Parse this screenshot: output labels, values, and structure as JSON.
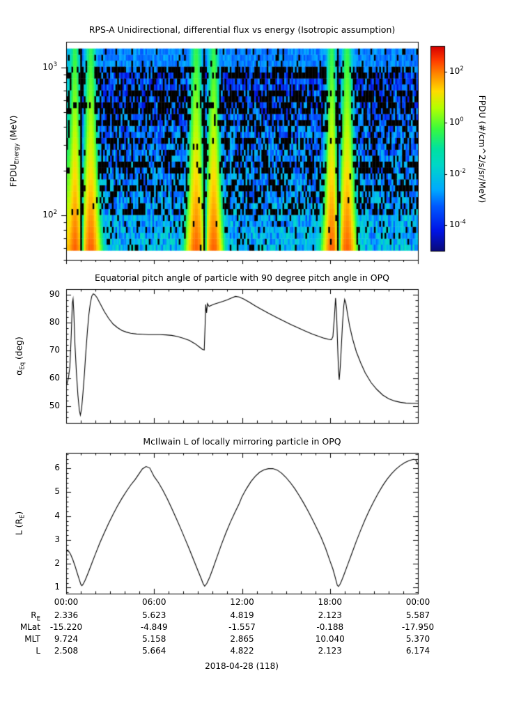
{
  "colors": {
    "background": "#ffffff",
    "frame": "#000000",
    "line": "#000000",
    "heatmap_gap": "#000000"
  },
  "chart_data": [
    {
      "type": "heatmap",
      "title": "RPS-A Unidirectional, differential flux vs energy (Isotropic assumption)",
      "ylabel": "FPDU_Energy (MeV)",
      "ylabel_parts": {
        "main": "FPDU",
        "sub": "Energy",
        "rest": " (MeV)"
      },
      "yscale": "log",
      "ylim": [
        50,
        1500
      ],
      "energy_range": [
        58,
        1350
      ],
      "ytick_values": [
        1000,
        100
      ],
      "ytick_exponents": [
        "3",
        "2"
      ],
      "x_range_hours": [
        0,
        24
      ],
      "colorbar": {
        "label": "FPDU (#/cm^2/s/sr/MeV)",
        "scale": "log",
        "lim": [
          1e-05,
          1000.0
        ],
        "tick_values": [
          100,
          1,
          0.01,
          0.0001
        ],
        "tick_exponents": [
          "2",
          "0",
          "-2",
          "-4"
        ]
      },
      "model": {
        "seed": 42,
        "belt": {
          "L_center": 1.9,
          "L_sigma": 0.85,
          "logA_at_60MeV": 2.2,
          "logA_slope_per_decade": -1.9,
          "narrowing": 1.6,
          "low_L_cutoff": 1.35,
          "low_L_width": 0.18
        },
        "background": {
          "log_at_60MeV": -2.3,
          "slope_per_decade": -1.1,
          "noise": 0.9,
          "top_band_min_MeV": 950,
          "top_band_log": -2.9
        },
        "dropout": {
          "low_E": 0.1,
          "mid_E": 0.32,
          "stripe_extra": 0.3,
          "top_E": 0.35,
          "bright_suppress": 0.08
        },
        "gap_times_hours": [
          1.05,
          9.4,
          18.55
        ],
        "gap_halfwidth_hours": 0.09
      }
    },
    {
      "type": "line",
      "title": "Equatorial pitch angle of particle with 90 degree pitch angle in OPQ",
      "ylabel": "α_Eq (deg)",
      "ylabel_parts": {
        "main": "α",
        "sub": "Eq",
        "rest": " (deg)"
      },
      "ylim": [
        44,
        92
      ],
      "yticks": [
        50,
        60,
        70,
        80,
        90
      ],
      "minor_step": 2,
      "points": [
        [
          0,
          57
        ],
        [
          0.15,
          60
        ],
        [
          0.25,
          64
        ],
        [
          0.35,
          76
        ],
        [
          0.42,
          87
        ],
        [
          0.47,
          88.5
        ],
        [
          0.52,
          84
        ],
        [
          0.6,
          72
        ],
        [
          0.7,
          62
        ],
        [
          0.8,
          54
        ],
        [
          0.9,
          48.5
        ],
        [
          0.97,
          46.8
        ],
        [
          1.05,
          49
        ],
        [
          1.15,
          55
        ],
        [
          1.25,
          62
        ],
        [
          1.35,
          70
        ],
        [
          1.45,
          77
        ],
        [
          1.55,
          83
        ],
        [
          1.65,
          87
        ],
        [
          1.75,
          89.5
        ],
        [
          1.85,
          90.3
        ],
        [
          1.95,
          90
        ],
        [
          2.1,
          89
        ],
        [
          2.3,
          87
        ],
        [
          2.6,
          84
        ],
        [
          2.9,
          81.5
        ],
        [
          3.2,
          79.5
        ],
        [
          3.5,
          78.2
        ],
        [
          3.8,
          77.2
        ],
        [
          4.1,
          76.6
        ],
        [
          4.4,
          76.2
        ],
        [
          4.8,
          75.9
        ],
        [
          5.2,
          75.8
        ],
        [
          5.6,
          75.7
        ],
        [
          6,
          75.7
        ],
        [
          6.4,
          75.7
        ],
        [
          6.8,
          75.6
        ],
        [
          7.2,
          75.4
        ],
        [
          7.6,
          75
        ],
        [
          8,
          74.4
        ],
        [
          8.4,
          73.6
        ],
        [
          8.8,
          72.4
        ],
        [
          9.1,
          71.2
        ],
        [
          9.3,
          70.4
        ],
        [
          9.42,
          70.2
        ],
        [
          9.48,
          79
        ],
        [
          9.52,
          86.5
        ],
        [
          9.58,
          83.5
        ],
        [
          9.64,
          86.8
        ],
        [
          9.75,
          85.8
        ],
        [
          9.9,
          86.2
        ],
        [
          10.1,
          86.6
        ],
        [
          10.4,
          87.1
        ],
        [
          10.7,
          87.6
        ],
        [
          11,
          88.2
        ],
        [
          11.3,
          88.9
        ],
        [
          11.55,
          89.4
        ],
        [
          11.8,
          89.2
        ],
        [
          12.1,
          88.5
        ],
        [
          12.5,
          87.3
        ],
        [
          12.9,
          86
        ],
        [
          13.3,
          84.8
        ],
        [
          13.8,
          83.4
        ],
        [
          14.3,
          82
        ],
        [
          14.8,
          80.7
        ],
        [
          15.3,
          79.4
        ],
        [
          15.8,
          78.2
        ],
        [
          16.3,
          77
        ],
        [
          16.8,
          75.9
        ],
        [
          17.2,
          75.1
        ],
        [
          17.6,
          74.4
        ],
        [
          17.9,
          74
        ],
        [
          18.1,
          73.9
        ],
        [
          18.2,
          75
        ],
        [
          18.3,
          82
        ],
        [
          18.38,
          88.8
        ],
        [
          18.45,
          83
        ],
        [
          18.52,
          72
        ],
        [
          18.58,
          63
        ],
        [
          18.63,
          59.5
        ],
        [
          18.7,
          64
        ],
        [
          18.78,
          72
        ],
        [
          18.86,
          80
        ],
        [
          18.94,
          86
        ],
        [
          19,
          88.3
        ],
        [
          19.08,
          87
        ],
        [
          19.2,
          83
        ],
        [
          19.35,
          78.5
        ],
        [
          19.55,
          74
        ],
        [
          19.8,
          69.5
        ],
        [
          20.1,
          65.5
        ],
        [
          20.4,
          62
        ],
        [
          20.8,
          58.5
        ],
        [
          21.2,
          56
        ],
        [
          21.6,
          54
        ],
        [
          22,
          52.7
        ],
        [
          22.4,
          51.9
        ],
        [
          22.8,
          51.4
        ],
        [
          23.2,
          51.1
        ],
        [
          23.6,
          51
        ],
        [
          24,
          51
        ]
      ]
    },
    {
      "type": "line",
      "title": "McIlwain L of locally mirroring particle in OPQ",
      "ylabel": "L (R_E)",
      "ylabel_parts": {
        "main": "L (R",
        "sub": "E",
        "rest": ")"
      },
      "ylim": [
        0.75,
        6.65
      ],
      "yticks": [
        1,
        2,
        3,
        4,
        5,
        6
      ],
      "minor_step": 0.2,
      "points": [
        [
          0,
          2.5
        ],
        [
          0.1,
          2.56
        ],
        [
          0.2,
          2.5
        ],
        [
          0.3,
          2.4
        ],
        [
          0.45,
          2.18
        ],
        [
          0.6,
          1.92
        ],
        [
          0.75,
          1.62
        ],
        [
          0.9,
          1.33
        ],
        [
          1,
          1.14
        ],
        [
          1.07,
          1.08
        ],
        [
          1.15,
          1.14
        ],
        [
          1.3,
          1.32
        ],
        [
          1.5,
          1.62
        ],
        [
          1.75,
          2.02
        ],
        [
          2,
          2.42
        ],
        [
          2.3,
          2.88
        ],
        [
          2.6,
          3.3
        ],
        [
          2.9,
          3.7
        ],
        [
          3.2,
          4.07
        ],
        [
          3.5,
          4.42
        ],
        [
          3.8,
          4.74
        ],
        [
          4.1,
          5.03
        ],
        [
          4.4,
          5.3
        ],
        [
          4.7,
          5.53
        ],
        [
          5,
          5.8
        ],
        [
          5.2,
          5.98
        ],
        [
          5.45,
          6.08
        ],
        [
          5.7,
          6.02
        ],
        [
          6,
          5.66
        ],
        [
          6.3,
          5.4
        ],
        [
          6.6,
          5.08
        ],
        [
          6.9,
          4.72
        ],
        [
          7.2,
          4.33
        ],
        [
          7.5,
          3.92
        ],
        [
          7.8,
          3.5
        ],
        [
          8.1,
          3.06
        ],
        [
          8.4,
          2.62
        ],
        [
          8.7,
          2.16
        ],
        [
          9,
          1.7
        ],
        [
          9.2,
          1.4
        ],
        [
          9.35,
          1.16
        ],
        [
          9.45,
          1.06
        ],
        [
          9.6,
          1.18
        ],
        [
          9.8,
          1.45
        ],
        [
          10,
          1.78
        ],
        [
          10.3,
          2.3
        ],
        [
          10.6,
          2.82
        ],
        [
          10.9,
          3.3
        ],
        [
          11.2,
          3.74
        ],
        [
          11.5,
          4.14
        ],
        [
          11.8,
          4.52
        ],
        [
          12,
          4.82
        ],
        [
          12.3,
          5.15
        ],
        [
          12.6,
          5.44
        ],
        [
          12.9,
          5.67
        ],
        [
          13.2,
          5.84
        ],
        [
          13.5,
          5.94
        ],
        [
          13.8,
          5.99
        ],
        [
          14.1,
          5.99
        ],
        [
          14.4,
          5.93
        ],
        [
          14.7,
          5.8
        ],
        [
          15,
          5.62
        ],
        [
          15.3,
          5.4
        ],
        [
          15.6,
          5.15
        ],
        [
          15.9,
          4.86
        ],
        [
          16.2,
          4.55
        ],
        [
          16.5,
          4.22
        ],
        [
          16.8,
          3.86
        ],
        [
          17.1,
          3.49
        ],
        [
          17.4,
          3.1
        ],
        [
          17.7,
          2.65
        ],
        [
          18,
          2.12
        ],
        [
          18.2,
          1.78
        ],
        [
          18.35,
          1.45
        ],
        [
          18.5,
          1.1
        ],
        [
          18.58,
          1.05
        ],
        [
          18.7,
          1.16
        ],
        [
          18.85,
          1.38
        ],
        [
          19,
          1.62
        ],
        [
          19.2,
          1.95
        ],
        [
          19.5,
          2.45
        ],
        [
          19.8,
          2.95
        ],
        [
          20.1,
          3.42
        ],
        [
          20.4,
          3.86
        ],
        [
          20.7,
          4.26
        ],
        [
          21,
          4.63
        ],
        [
          21.3,
          4.97
        ],
        [
          21.6,
          5.28
        ],
        [
          21.9,
          5.55
        ],
        [
          22.2,
          5.78
        ],
        [
          22.5,
          5.97
        ],
        [
          22.8,
          6.12
        ],
        [
          23.1,
          6.24
        ],
        [
          23.4,
          6.33
        ],
        [
          23.7,
          6.38
        ],
        [
          23.85,
          6.36
        ],
        [
          24,
          6.17
        ]
      ]
    }
  ],
  "xaxis": {
    "lim_hours": [
      0,
      24
    ],
    "major_ticks_hours": [
      0,
      6,
      12,
      18,
      24
    ],
    "minor_tick_interval_hours": 1,
    "tick_labels": [
      "00:00",
      "06:00",
      "12:00",
      "18:00",
      "00:00"
    ]
  },
  "footer": {
    "rows": [
      {
        "label": "R",
        "sub": "E",
        "values": [
          "2.336",
          "5.623",
          "4.819",
          "2.123",
          "5.587"
        ]
      },
      {
        "label": "MLat",
        "sub": "",
        "values": [
          "-15.220",
          "-4.849",
          "-1.557",
          "-0.188",
          "-17.950"
        ]
      },
      {
        "label": "MLT",
        "sub": "",
        "values": [
          "9.724",
          "5.158",
          "2.865",
          "10.040",
          "5.370"
        ]
      },
      {
        "label": "L",
        "sub": "",
        "values": [
          "2.508",
          "5.664",
          "4.822",
          "2.123",
          "6.174"
        ]
      }
    ],
    "date_label": "2018-04-28 (118)"
  }
}
